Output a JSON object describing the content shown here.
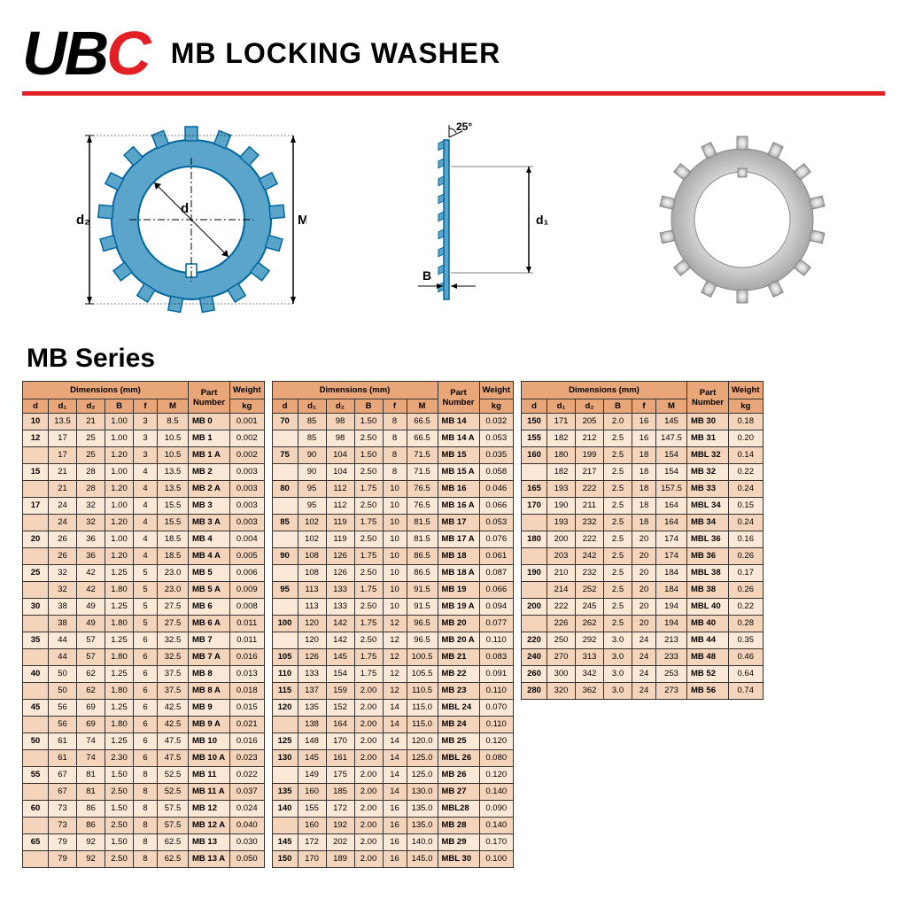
{
  "brand": "UBC",
  "title": "MB LOCKING WASHER",
  "series_title": "MB Series",
  "colors": {
    "accent": "#e31e24",
    "header_bg": "#e8a679",
    "row_odd": "#f4d5bc",
    "row_even": "#fce8d6",
    "diagram_fill": "#5aa5c9",
    "diagram_line": "#0066a0"
  },
  "diagram_labels": {
    "d2": "d₂",
    "d": "d",
    "M": "M",
    "B": "B",
    "d1": "d₁",
    "angle": "25°"
  },
  "columns": {
    "dimensions": "Dimensions (mm)",
    "d": "d",
    "d1": "d₁",
    "d2": "d₂",
    "B": "B",
    "f": "f",
    "M": "M",
    "part_number": "Part\nNumber",
    "weight": "Weight",
    "kg": "kg"
  },
  "tables": [
    [
      [
        "10",
        "13.5",
        "21",
        "1.00",
        "3",
        "8.5",
        "MB 0",
        "0.001"
      ],
      [
        "12",
        "17",
        "25",
        "1.00",
        "3",
        "10.5",
        "MB 1",
        "0.002"
      ],
      [
        "",
        "17",
        "25",
        "1.20",
        "3",
        "10.5",
        "MB 1 A",
        "0.002"
      ],
      [
        "15",
        "21",
        "28",
        "1.00",
        "4",
        "13.5",
        "MB 2",
        "0.003"
      ],
      [
        "",
        "21",
        "28",
        "1.20",
        "4",
        "13.5",
        "MB 2 A",
        "0.003"
      ],
      [
        "17",
        "24",
        "32",
        "1.00",
        "4",
        "15.5",
        "MB 3",
        "0.003"
      ],
      [
        "",
        "24",
        "32",
        "1.20",
        "4",
        "15.5",
        "MB 3 A",
        "0.003"
      ],
      [
        "20",
        "26",
        "36",
        "1.00",
        "4",
        "18.5",
        "MB 4",
        "0.004"
      ],
      [
        "",
        "26",
        "36",
        "1.20",
        "4",
        "18.5",
        "MB 4 A",
        "0.005"
      ],
      [
        "25",
        "32",
        "42",
        "1.25",
        "5",
        "23.0",
        "MB 5",
        "0.006"
      ],
      [
        "",
        "32",
        "42",
        "1.80",
        "5",
        "23.0",
        "MB 5 A",
        "0.009"
      ],
      [
        "30",
        "38",
        "49",
        "1.25",
        "5",
        "27.5",
        "MB 6",
        "0.008"
      ],
      [
        "",
        "38",
        "49",
        "1.80",
        "5",
        "27.5",
        "MB 6 A",
        "0.011"
      ],
      [
        "35",
        "44",
        "57",
        "1.25",
        "6",
        "32.5",
        "MB 7",
        "0.011"
      ],
      [
        "",
        "44",
        "57",
        "1.80",
        "6",
        "32.5",
        "MB 7 A",
        "0.016"
      ],
      [
        "40",
        "50",
        "62",
        "1.25",
        "6",
        "37.5",
        "MB 8",
        "0.013"
      ],
      [
        "",
        "50",
        "62",
        "1.80",
        "6",
        "37.5",
        "MB 8 A",
        "0.018"
      ],
      [
        "45",
        "56",
        "69",
        "1.25",
        "6",
        "42.5",
        "MB 9",
        "0.015"
      ],
      [
        "",
        "56",
        "69",
        "1.80",
        "6",
        "42.5",
        "MB 9 A",
        "0.021"
      ],
      [
        "50",
        "61",
        "74",
        "1.25",
        "6",
        "47.5",
        "MB 10",
        "0.016"
      ],
      [
        "",
        "61",
        "74",
        "2.30",
        "6",
        "47.5",
        "MB 10 A",
        "0.023"
      ],
      [
        "55",
        "67",
        "81",
        "1.50",
        "8",
        "52.5",
        "MB 11",
        "0.022"
      ],
      [
        "",
        "67",
        "81",
        "2.50",
        "8",
        "52.5",
        "MB 11 A",
        "0.037"
      ],
      [
        "60",
        "73",
        "86",
        "1.50",
        "8",
        "57.5",
        "MB 12",
        "0.024"
      ],
      [
        "",
        "73",
        "86",
        "2.50",
        "8",
        "57.5",
        "MB 12 A",
        "0.040"
      ],
      [
        "65",
        "79",
        "92",
        "1.50",
        "8",
        "62.5",
        "MB 13",
        "0.030"
      ],
      [
        "",
        "79",
        "92",
        "2.50",
        "8",
        "62.5",
        "MB 13 A",
        "0.050"
      ]
    ],
    [
      [
        "70",
        "85",
        "98",
        "1.50",
        "8",
        "66.5",
        "MB 14",
        "0.032"
      ],
      [
        "",
        "85",
        "98",
        "2.50",
        "8",
        "66.5",
        "MB 14 A",
        "0.053"
      ],
      [
        "75",
        "90",
        "104",
        "1.50",
        "8",
        "71.5",
        "MB 15",
        "0.035"
      ],
      [
        "",
        "90",
        "104",
        "2.50",
        "8",
        "71.5",
        "MB 15 A",
        "0.058"
      ],
      [
        "80",
        "95",
        "112",
        "1.75",
        "10",
        "76.5",
        "MB 16",
        "0.046"
      ],
      [
        "",
        "95",
        "112",
        "2.50",
        "10",
        "76.5",
        "MB 16 A",
        "0.066"
      ],
      [
        "85",
        "102",
        "119",
        "1.75",
        "10",
        "81.5",
        "MB 17",
        "0.053"
      ],
      [
        "",
        "102",
        "119",
        "2.50",
        "10",
        "81.5",
        "MB 17 A",
        "0.076"
      ],
      [
        "90",
        "108",
        "126",
        "1.75",
        "10",
        "86.5",
        "MB 18",
        "0.061"
      ],
      [
        "",
        "108",
        "126",
        "2.50",
        "10",
        "86.5",
        "MB 18 A",
        "0.087"
      ],
      [
        "95",
        "113",
        "133",
        "1.75",
        "10",
        "91.5",
        "MB 19",
        "0.066"
      ],
      [
        "",
        "113",
        "133",
        "2.50",
        "10",
        "91.5",
        "MB 19 A",
        "0.094"
      ],
      [
        "100",
        "120",
        "142",
        "1.75",
        "12",
        "96.5",
        "MB 20",
        "0.077"
      ],
      [
        "",
        "120",
        "142",
        "2.50",
        "12",
        "96.5",
        "MB 20 A",
        "0.110"
      ],
      [
        "105",
        "126",
        "145",
        "1.75",
        "12",
        "100.5",
        "MB 21",
        "0.083"
      ],
      [
        "110",
        "133",
        "154",
        "1.75",
        "12",
        "105.5",
        "MB 22",
        "0.091"
      ],
      [
        "115",
        "137",
        "159",
        "2.00",
        "12",
        "110.5",
        "MB 23",
        "0.110"
      ],
      [
        "120",
        "135",
        "152",
        "2.00",
        "14",
        "115.0",
        "MBL 24",
        "0.070"
      ],
      [
        "",
        "138",
        "164",
        "2.00",
        "14",
        "115.0",
        "MB 24",
        "0.110"
      ],
      [
        "125",
        "148",
        "170",
        "2.00",
        "14",
        "120.0",
        "MB 25",
        "0.120"
      ],
      [
        "130",
        "145",
        "161",
        "2.00",
        "14",
        "125.0",
        "MBL 26",
        "0.080"
      ],
      [
        "",
        "149",
        "175",
        "2.00",
        "14",
        "125.0",
        "MB 26",
        "0.120"
      ],
      [
        "135",
        "160",
        "185",
        "2.00",
        "14",
        "130.0",
        "MB 27",
        "0.140"
      ],
      [
        "140",
        "155",
        "172",
        "2.00",
        "16",
        "135.0",
        "MBL28",
        "0.090"
      ],
      [
        "",
        "160",
        "192",
        "2.00",
        "16",
        "135.0",
        "MB 28",
        "0.140"
      ],
      [
        "145",
        "172",
        "202",
        "2.00",
        "16",
        "140.0",
        "MB 29",
        "0.170"
      ],
      [
        "150",
        "170",
        "189",
        "2.00",
        "16",
        "145.0",
        "MBL 30",
        "0.100"
      ]
    ],
    [
      [
        "150",
        "171",
        "205",
        "2.0",
        "16",
        "145",
        "MB 30",
        "0.18"
      ],
      [
        "155",
        "182",
        "212",
        "2.5",
        "16",
        "147.5",
        "MB 31",
        "0.20"
      ],
      [
        "160",
        "180",
        "199",
        "2.5",
        "18",
        "154",
        "MBL 32",
        "0.14"
      ],
      [
        "",
        "182",
        "217",
        "2.5",
        "18",
        "154",
        "MB 32",
        "0.22"
      ],
      [
        "165",
        "193",
        "222",
        "2.5",
        "18",
        "157.5",
        "MB 33",
        "0.24"
      ],
      [
        "170",
        "190",
        "211",
        "2.5",
        "18",
        "164",
        "MBL 34",
        "0.15"
      ],
      [
        "",
        "193",
        "232",
        "2.5",
        "18",
        "164",
        "MB 34",
        "0.24"
      ],
      [
        "180",
        "200",
        "222",
        "2.5",
        "20",
        "174",
        "MBL 36",
        "0.16"
      ],
      [
        "",
        "203",
        "242",
        "2.5",
        "20",
        "174",
        "MB 36",
        "0.26"
      ],
      [
        "190",
        "210",
        "232",
        "2.5",
        "20",
        "184",
        "MBL 38",
        "0.17"
      ],
      [
        "",
        "214",
        "252",
        "2.5",
        "20",
        "184",
        "MB 38",
        "0.26"
      ],
      [
        "200",
        "222",
        "245",
        "2.5",
        "20",
        "194",
        "MBL 40",
        "0.22"
      ],
      [
        "",
        "226",
        "262",
        "2.5",
        "20",
        "194",
        "MB 40",
        "0.28"
      ],
      [
        "220",
        "250",
        "292",
        "3.0",
        "24",
        "213",
        "MB 44",
        "0.35"
      ],
      [
        "240",
        "270",
        "313",
        "3.0",
        "24",
        "233",
        "MB 48",
        "0.46"
      ],
      [
        "260",
        "300",
        "342",
        "3.0",
        "24",
        "253",
        "MB 52",
        "0.64"
      ],
      [
        "280",
        "320",
        "362",
        "3.0",
        "24",
        "273",
        "MB 56",
        "0.74"
      ]
    ]
  ]
}
